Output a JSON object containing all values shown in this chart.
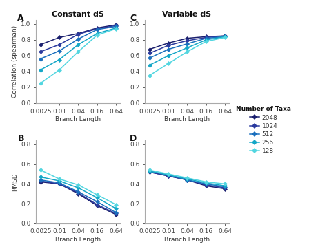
{
  "x": [
    0.0025,
    0.01,
    0.04,
    0.16,
    0.64
  ],
  "colors": [
    "#1a1f6e",
    "#2b3a9e",
    "#1a6fbd",
    "#15a7c7",
    "#52d6e0"
  ],
  "taxa_labels": [
    "2048",
    "1024",
    "512",
    "256",
    "128"
  ],
  "panel_A_title": "Constant dS",
  "panel_C_title": "Variable dS",
  "ylabel_top": "Correlation (spearman)",
  "ylabel_bottom": "RMSD",
  "xlabel": "Branch Length",
  "legend_title": "Number of Taxa",
  "A_data": [
    [
      0.74,
      0.83,
      0.88,
      0.95,
      0.99
    ],
    [
      0.65,
      0.74,
      0.87,
      0.94,
      0.98
    ],
    [
      0.56,
      0.66,
      0.81,
      0.93,
      0.97
    ],
    [
      0.42,
      0.55,
      0.74,
      0.88,
      0.95
    ],
    [
      0.25,
      0.42,
      0.65,
      0.86,
      0.94
    ]
  ],
  "C_data": [
    [
      0.68,
      0.76,
      0.82,
      0.84,
      0.85
    ],
    [
      0.63,
      0.73,
      0.79,
      0.83,
      0.85
    ],
    [
      0.57,
      0.68,
      0.75,
      0.82,
      0.84
    ],
    [
      0.48,
      0.6,
      0.7,
      0.8,
      0.84
    ],
    [
      0.35,
      0.5,
      0.65,
      0.78,
      0.83
    ]
  ],
  "B_data": [
    [
      0.42,
      0.4,
      0.3,
      0.18,
      0.09
    ],
    [
      0.43,
      0.4,
      0.31,
      0.19,
      0.1
    ],
    [
      0.44,
      0.41,
      0.32,
      0.22,
      0.11
    ],
    [
      0.47,
      0.43,
      0.36,
      0.26,
      0.15
    ],
    [
      0.54,
      0.45,
      0.39,
      0.29,
      0.19
    ]
  ],
  "D_data": [
    [
      0.52,
      0.48,
      0.44,
      0.38,
      0.35
    ],
    [
      0.52,
      0.48,
      0.44,
      0.39,
      0.36
    ],
    [
      0.53,
      0.49,
      0.44,
      0.4,
      0.37
    ],
    [
      0.53,
      0.49,
      0.45,
      0.41,
      0.38
    ],
    [
      0.54,
      0.5,
      0.46,
      0.42,
      0.4
    ]
  ],
  "A_ylim": [
    0.0,
    1.05
  ],
  "C_ylim": [
    0.0,
    1.05
  ],
  "B_ylim": [
    0.0,
    0.84
  ],
  "D_ylim": [
    0.0,
    0.84
  ],
  "A_yticks": [
    0.0,
    0.2,
    0.4,
    0.6,
    0.8,
    1.0
  ],
  "B_yticks": [
    0.0,
    0.2,
    0.4,
    0.6,
    0.8
  ],
  "marker": "D",
  "markersize": 3.5,
  "linewidth": 1.1,
  "background_color": "#ffffff",
  "panel_label_fontsize": 9,
  "axis_fontsize": 6.5,
  "title_fontsize": 8,
  "legend_fontsize": 6.5
}
